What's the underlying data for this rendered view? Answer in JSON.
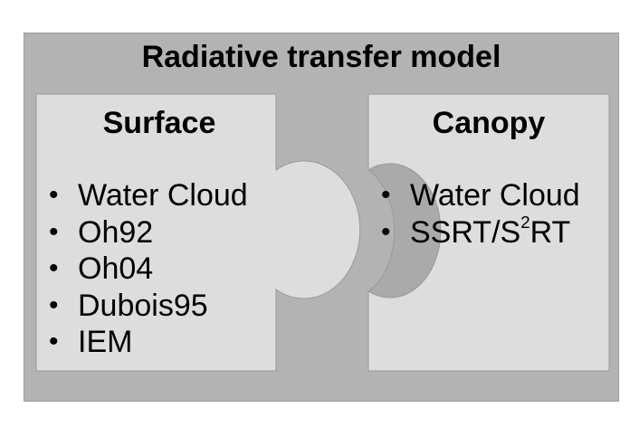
{
  "diagram": {
    "title": "Radiative transfer model",
    "surface": {
      "title": "Surface",
      "items": [
        "Water Cloud",
        "Oh92",
        "Oh04",
        "Dubois95",
        "IEM"
      ]
    },
    "canopy": {
      "title": "Canopy",
      "items": [
        "Water Cloud",
        "SSRT/S"
      ],
      "item2_sup": "2",
      "item2_tail": "RT"
    },
    "colors": {
      "outer_fill": "#b3b3b3",
      "box_fill": "#dddddd",
      "knob_fill": "#aaaaaa",
      "stroke": "#999999"
    }
  }
}
